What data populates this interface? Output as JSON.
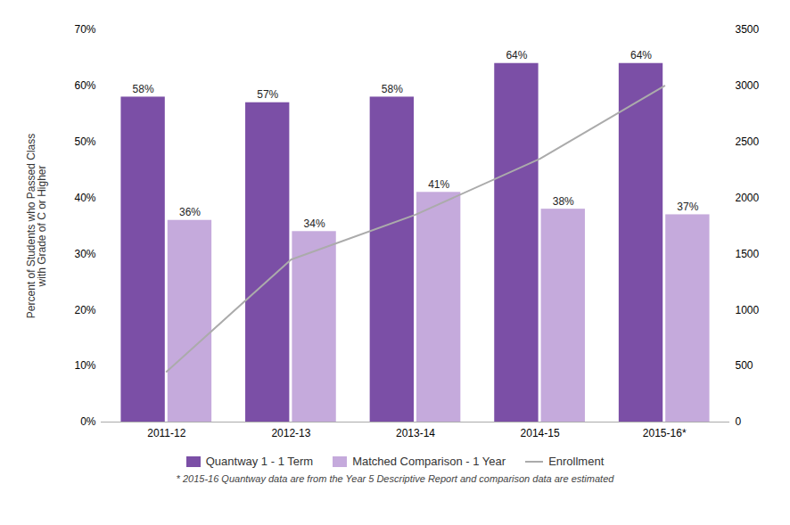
{
  "chart_data": {
    "type": "bar",
    "categories": [
      "2011-12",
      "2012-13",
      "2013-14",
      "2014-15",
      "2015-16*"
    ],
    "series": [
      {
        "name": "Quantway 1 - 1 Term",
        "color": "#7B4FA6",
        "values": [
          0.58,
          0.57,
          0.58,
          0.64,
          0.64
        ],
        "value_labels": [
          "58%",
          "57%",
          "58%",
          "64%",
          "64%"
        ]
      },
      {
        "name": "Matched Comparison - 1 Year",
        "color": "#C5AADC",
        "values": [
          0.36,
          0.34,
          0.41,
          0.38,
          0.37
        ],
        "value_labels": [
          "36%",
          "34%",
          "41%",
          "38%",
          "37%"
        ]
      },
      {
        "name": "Enrollment",
        "type": "line",
        "axis": "y2",
        "color": "#ABABAB",
        "values": [
          450,
          1450,
          1850,
          2350,
          3000
        ]
      }
    ],
    "ylabel": "Percent of Students who Passed Class\nwith Grade of C or Higher",
    "ylim": [
      0,
      0.7
    ],
    "yticks": [
      {
        "value": 0.0,
        "label": "0%"
      },
      {
        "value": 0.1,
        "label": "10%"
      },
      {
        "value": 0.2,
        "label": "20%"
      },
      {
        "value": 0.3,
        "label": "30%"
      },
      {
        "value": 0.4,
        "label": "40%"
      },
      {
        "value": 0.5,
        "label": "50%"
      },
      {
        "value": 0.6,
        "label": "60%"
      },
      {
        "value": 0.7,
        "label": "70%"
      }
    ],
    "y2lim": [
      0,
      3500
    ],
    "y2ticks": [
      0,
      500,
      1000,
      1500,
      2000,
      2500,
      3000,
      3500
    ],
    "data_labels": true,
    "grid": false,
    "legend": "bottom",
    "footnote": "* 2015-16 Quantway data are from the Year 5 Descriptive Report and comparison data are estimated"
  }
}
